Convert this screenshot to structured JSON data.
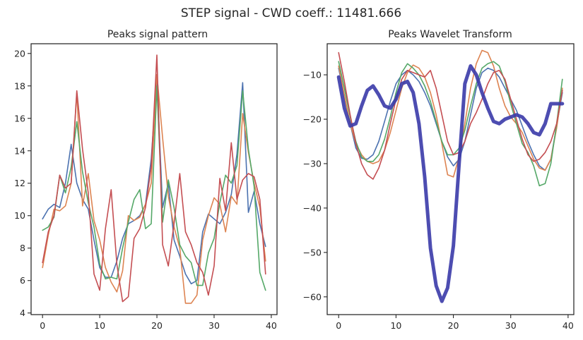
{
  "figure": {
    "suptitle": "STEP signal   -   CWD coeff.: 11481.666"
  },
  "colors": {
    "blue": "#4c72b0",
    "orange": "#dd8452",
    "green": "#55a868",
    "red": "#c44e52",
    "cwd": "#3a3aa8"
  },
  "chart_data": [
    {
      "type": "line",
      "title": "Peaks signal pattern",
      "xlabel": "",
      "ylabel": "",
      "xlim": [
        -2,
        41
      ],
      "ylim": [
        3.9,
        20.6
      ],
      "xticks": [
        0,
        10,
        20,
        30,
        40
      ],
      "yticks": [
        4,
        6,
        8,
        10,
        12,
        14,
        16,
        18,
        20
      ],
      "grid": false,
      "x": [
        0,
        1,
        2,
        3,
        4,
        5,
        6,
        7,
        8,
        9,
        10,
        11,
        12,
        13,
        14,
        15,
        16,
        17,
        18,
        19,
        20,
        21,
        22,
        23,
        24,
        25,
        26,
        27,
        28,
        29,
        30,
        31,
        32,
        33,
        34,
        35,
        36,
        37,
        38,
        39
      ],
      "series": [
        {
          "color": "#4c72b0",
          "width": 1.6,
          "values": [
            9.8,
            10.4,
            10.7,
            10.5,
            12.0,
            14.4,
            12.0,
            11.0,
            10.4,
            8.5,
            6.8,
            6.2,
            6.2,
            7.2,
            8.6,
            9.5,
            9.7,
            10.0,
            10.7,
            13.5,
            18.5,
            10.5,
            12.0,
            8.5,
            7.5,
            6.4,
            5.8,
            6.0,
            9.0,
            10.1,
            9.8,
            9.5,
            10.2,
            11.3,
            13.8,
            18.2,
            10.2,
            11.5,
            9.5,
            8.1
          ]
        },
        {
          "color": "#dd8452",
          "width": 1.6,
          "values": [
            6.8,
            8.8,
            10.4,
            10.3,
            10.6,
            12.0,
            17.6,
            10.6,
            12.6,
            9.7,
            8.5,
            6.8,
            5.9,
            5.3,
            6.6,
            10.0,
            9.7,
            9.9,
            10.7,
            12.0,
            18.7,
            14.8,
            11.2,
            9.3,
            8.0,
            4.6,
            4.6,
            5.1,
            8.5,
            10.0,
            11.1,
            10.7,
            9.0,
            11.2,
            10.7,
            16.3,
            13.9,
            12.0,
            10.5,
            7.2
          ]
        },
        {
          "color": "#55a868",
          "width": 1.6,
          "values": [
            9.1,
            9.3,
            9.9,
            12.5,
            11.4,
            13.0,
            15.8,
            12.7,
            10.8,
            9.3,
            7.0,
            6.1,
            6.2,
            6.1,
            8.0,
            9.6,
            11.0,
            11.6,
            9.2,
            9.5,
            18.0,
            9.6,
            12.2,
            10.5,
            8.2,
            7.5,
            7.1,
            5.7,
            5.7,
            7.7,
            8.6,
            10.8,
            12.5,
            12.0,
            13.1,
            17.7,
            14.1,
            11.8,
            6.5,
            5.4
          ]
        },
        {
          "color": "#c44e52",
          "width": 1.6,
          "values": [
            7.1,
            9.0,
            10.0,
            12.5,
            11.7,
            12.0,
            17.7,
            14.1,
            11.4,
            6.4,
            5.4,
            9.2,
            11.6,
            7.0,
            4.7,
            5.0,
            8.6,
            9.2,
            10.5,
            13.0,
            19.9,
            8.2,
            6.9,
            9.5,
            12.6,
            9.0,
            8.2,
            7.1,
            6.5,
            5.1,
            6.9,
            12.3,
            10.3,
            14.5,
            11.0,
            12.2,
            12.6,
            12.4,
            11.0,
            6.4
          ]
        }
      ]
    },
    {
      "type": "line",
      "title": "Peaks Wavelet Transform",
      "xlabel": "",
      "ylabel": "",
      "xlim": [
        -2,
        41
      ],
      "ylim": [
        -64,
        -3
      ],
      "xticks": [
        0,
        10,
        20,
        30,
        40
      ],
      "yticks": [
        -60,
        -50,
        -40,
        -30,
        -20,
        -10
      ],
      "grid": false,
      "x": [
        0,
        1,
        2,
        3,
        4,
        5,
        6,
        7,
        8,
        9,
        10,
        11,
        12,
        13,
        14,
        15,
        16,
        17,
        18,
        19,
        20,
        21,
        22,
        23,
        24,
        25,
        26,
        27,
        28,
        29,
        30,
        31,
        32,
        33,
        34,
        35,
        36,
        37,
        38,
        39
      ],
      "series": [
        {
          "color": "#4c72b0",
          "width": 1.6,
          "values": [
            -8.5,
            -15.0,
            -21.0,
            -26.5,
            -28.8,
            -29.0,
            -28.0,
            -25.0,
            -20.5,
            -16.0,
            -12.0,
            -10.0,
            -9.0,
            -10.0,
            -11.5,
            -14.0,
            -17.0,
            -21.0,
            -25.0,
            -28.5,
            -30.5,
            -29.0,
            -25.0,
            -19.0,
            -13.0,
            -9.5,
            -8.5,
            -9.0,
            -10.5,
            -13.0,
            -15.5,
            -18.0,
            -21.5,
            -25.0,
            -28.0,
            -30.5,
            -31.5,
            -29.0,
            -21.5,
            -14.0
          ]
        },
        {
          "color": "#dd8452",
          "width": 1.6,
          "values": [
            -8.0,
            -14.5,
            -21.0,
            -25.5,
            -28.0,
            -29.5,
            -30.0,
            -29.5,
            -27.0,
            -23.0,
            -18.0,
            -13.0,
            -9.5,
            -7.8,
            -8.5,
            -10.5,
            -14.0,
            -19.0,
            -25.5,
            -32.5,
            -33.0,
            -28.5,
            -21.0,
            -13.0,
            -7.5,
            -4.5,
            -5.0,
            -8.0,
            -13.0,
            -17.0,
            -19.5,
            -21.0,
            -23.0,
            -26.0,
            -29.0,
            -31.0,
            -31.5,
            -29.0,
            -22.0,
            -13.0
          ]
        },
        {
          "color": "#55a868",
          "width": 1.6,
          "values": [
            -7.0,
            -13.0,
            -19.5,
            -25.0,
            -28.5,
            -29.5,
            -29.5,
            -28.0,
            -24.5,
            -19.5,
            -14.0,
            -9.5,
            -7.5,
            -8.5,
            -10.0,
            -12.5,
            -16.0,
            -20.5,
            -25.0,
            -28.0,
            -28.0,
            -26.5,
            -22.5,
            -17.0,
            -12.0,
            -8.5,
            -7.5,
            -7.0,
            -8.0,
            -11.5,
            -16.5,
            -21.0,
            -25.5,
            -27.5,
            -30.5,
            -35.0,
            -34.5,
            -30.0,
            -21.0,
            -11.0
          ]
        },
        {
          "color": "#c44e52",
          "width": 1.6,
          "values": [
            -5.0,
            -11.5,
            -19.0,
            -25.5,
            -30.0,
            -32.5,
            -33.5,
            -31.0,
            -27.0,
            -21.0,
            -15.5,
            -11.0,
            -9.0,
            -9.5,
            -10.0,
            -10.5,
            -9.0,
            -13.0,
            -19.0,
            -25.0,
            -28.0,
            -27.5,
            -25.0,
            -21.0,
            -18.5,
            -15.5,
            -12.0,
            -9.5,
            -9.0,
            -11.0,
            -15.5,
            -20.0,
            -24.5,
            -28.0,
            -29.5,
            -29.0,
            -27.5,
            -25.0,
            -21.0,
            -13.5
          ]
        },
        {
          "color": "#3a3aa8",
          "width": 5.0,
          "opacity": 0.9,
          "values": [
            -10.5,
            -17.5,
            -21.5,
            -21.0,
            -17.0,
            -13.5,
            -12.5,
            -14.5,
            -17.0,
            -17.5,
            -15.5,
            -12.0,
            -11.5,
            -14.0,
            -21.0,
            -33.0,
            -49.0,
            -57.5,
            -61.0,
            -58.0,
            -48.5,
            -30.0,
            -12.0,
            -8.0,
            -10.0,
            -14.0,
            -17.5,
            -20.5,
            -21.0,
            -20.0,
            -19.5,
            -19.0,
            -19.5,
            -21.0,
            -23.0,
            -23.5,
            -21.0,
            -16.5,
            -16.5,
            -16.5
          ]
        }
      ]
    }
  ]
}
